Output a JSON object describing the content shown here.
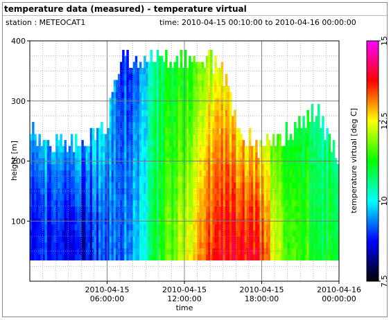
{
  "header": {
    "title": "temperature data (measured) - temperature virtual",
    "station": "station : METEOCAT1",
    "time_range": "time: 2010-04-15 00:10:00 to 2010-04-16 00:00:00"
  },
  "chart_data": {
    "type": "heatmap",
    "xlabel": "time",
    "ylabel": "height [m]",
    "colorbar_label": "temperature virtual [deg C]",
    "x_range": [
      "2010-04-15 00:00:00",
      "2010-04-16 00:00:00"
    ],
    "xlim_hours": [
      0,
      24
    ],
    "ylim": [
      0,
      400
    ],
    "clim": [
      7.5,
      15
    ],
    "x_ticks": [
      {
        "hours": 6,
        "line1": "2010-04-15",
        "line2": "06:00:00"
      },
      {
        "hours": 12,
        "line1": "2010-04-15",
        "line2": "12:00:00"
      },
      {
        "hours": 18,
        "line1": "2010-04-15",
        "line2": "18:00:00"
      },
      {
        "hours": 24,
        "line1": "2010-04-16",
        "line2": "00:00:00"
      }
    ],
    "y_ticks": [
      100,
      200,
      300,
      400
    ],
    "colorbar_ticks": [
      {
        "value": 7.5,
        "label": "7.5"
      },
      {
        "value": 10,
        "label": "10"
      },
      {
        "value": 12.5,
        "label": "12.5"
      },
      {
        "value": 15,
        "label": "15"
      }
    ],
    "grid": true,
    "colormap": [
      "#000000",
      "#0000ff",
      "#00ffff",
      "#00ff00",
      "#ffff00",
      "#ff0000",
      "#ff00ff"
    ],
    "time_step_minutes": 10,
    "height_bottom_m": 35,
    "height_bin_m": 10,
    "profile_hours": [
      0,
      2,
      4,
      6,
      7,
      8,
      9,
      10,
      11,
      12,
      13,
      14,
      15,
      16,
      17,
      18,
      19,
      20,
      21,
      22,
      23,
      24
    ],
    "profile_top_m": [
      245,
      225,
      230,
      255,
      365,
      365,
      365,
      365,
      365,
      365,
      365,
      365,
      340,
      265,
      235,
      220,
      230,
      240,
      255,
      280,
      250,
      205
    ],
    "temperature_profiles": [
      {
        "hours": 0,
        "values": [
          8.9,
          8.9,
          9.1,
          9.4,
          9.8
        ]
      },
      {
        "hours": 2,
        "values": [
          9.0,
          9.0,
          9.2,
          9.5,
          9.9
        ]
      },
      {
        "hours": 4,
        "values": [
          8.5,
          8.6,
          8.9,
          9.3,
          9.6
        ]
      },
      {
        "hours": 6,
        "values": [
          9.2,
          9.3,
          9.5,
          9.7,
          9.9
        ]
      },
      {
        "hours": 7,
        "values": [
          9.4,
          9.4,
          9.4,
          9.3,
          9.2
        ]
      },
      {
        "hours": 8,
        "values": [
          9.7,
          9.6,
          9.5,
          9.3,
          9.0
        ]
      },
      {
        "hours": 9,
        "values": [
          10.3,
          10.2,
          10.1,
          10.0,
          9.8
        ]
      },
      {
        "hours": 10,
        "values": [
          11.1,
          11.0,
          10.9,
          10.8,
          10.6
        ]
      },
      {
        "hours": 11,
        "values": [
          11.7,
          11.6,
          11.4,
          11.2,
          11.0
        ]
      },
      {
        "hours": 12,
        "values": [
          12.5,
          12.2,
          11.9,
          11.6,
          11.4
        ]
      },
      {
        "hours": 13,
        "values": [
          13.0,
          12.7,
          12.4,
          12.0,
          11.7
        ]
      },
      {
        "hours": 14,
        "values": [
          13.4,
          13.1,
          12.8,
          12.4,
          11.9
        ]
      },
      {
        "hours": 15,
        "values": [
          13.6,
          13.4,
          13.1,
          12.7,
          12.3
        ]
      },
      {
        "hours": 16,
        "values": [
          13.8,
          13.6,
          13.3,
          12.9,
          12.6
        ]
      },
      {
        "hours": 17,
        "values": [
          13.9,
          13.7,
          13.4,
          13.0,
          12.7
        ]
      },
      {
        "hours": 18,
        "values": [
          13.6,
          13.4,
          13.1,
          12.8,
          12.5
        ]
      },
      {
        "hours": 19,
        "values": [
          12.4,
          12.3,
          12.1,
          11.9,
          11.7
        ]
      },
      {
        "hours": 20,
        "values": [
          11.9,
          11.8,
          11.7,
          11.5,
          11.3
        ]
      },
      {
        "hours": 21,
        "values": [
          11.5,
          11.4,
          11.3,
          11.1,
          10.9
        ]
      },
      {
        "hours": 22,
        "values": [
          11.3,
          11.2,
          11.1,
          11.0,
          10.8
        ]
      },
      {
        "hours": 23,
        "values": [
          11.1,
          11.0,
          10.9,
          10.8,
          10.6
        ]
      },
      {
        "hours": 24,
        "values": [
          11.0,
          10.9,
          10.8,
          10.7,
          10.5
        ]
      }
    ],
    "profile_levels_fraction": [
      0,
      0.25,
      0.5,
      0.75,
      1
    ]
  }
}
